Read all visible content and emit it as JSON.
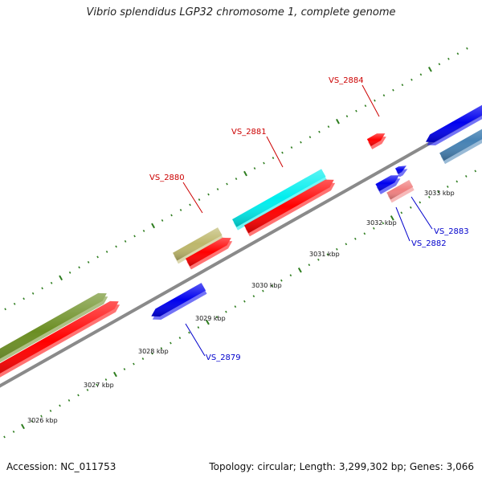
{
  "title": "Vibrio splendidus LGP32 chromosome 1, complete genome",
  "footer": {
    "accession": "Accession: NC_011753",
    "topology": "Topology: circular; Length: 3,299,302 bp; Genes: 3,066"
  },
  "colors": {
    "backbone": "#8a8a8a",
    "tick": "#2e7d1f",
    "label_red": "#cc0000",
    "label_blue": "#0000cc"
  },
  "tick_labels": [
    "3026 kbp",
    "3027 kbp",
    "3028 kbp",
    "3029 kbp",
    "3030 kbp",
    "3031 kbp",
    "3032 kbp",
    "3033 kbp"
  ],
  "genes": [
    {
      "id": "g1",
      "color": "#6b8e23"
    },
    {
      "id": "g2",
      "color": "#ff0000"
    },
    {
      "id": "g3",
      "color": "#0000ee"
    },
    {
      "id": "g4",
      "color": "#bdb76b"
    },
    {
      "id": "g5",
      "color": "#ff0000"
    },
    {
      "id": "g6",
      "color": "#00eeee"
    },
    {
      "id": "g7",
      "color": "#ff0000"
    },
    {
      "id": "g8",
      "color": "#ff0000"
    },
    {
      "id": "g9",
      "color": "#0000ee"
    },
    {
      "id": "g10",
      "color": "#0000ee"
    },
    {
      "id": "g11",
      "color": "#f08080"
    },
    {
      "id": "g12",
      "color": "#0000ee"
    },
    {
      "id": "g13",
      "color": "#4682b4"
    }
  ],
  "gene_labels": [
    {
      "text": "VS_2879",
      "color": "#0000cc"
    },
    {
      "text": "VS_2880",
      "color": "#cc0000"
    },
    {
      "text": "VS_2881",
      "color": "#cc0000"
    },
    {
      "text": "VS_2882",
      "color": "#0000cc"
    },
    {
      "text": "VS_2883",
      "color": "#0000cc"
    },
    {
      "text": "VS_2884",
      "color": "#cc0000"
    }
  ]
}
